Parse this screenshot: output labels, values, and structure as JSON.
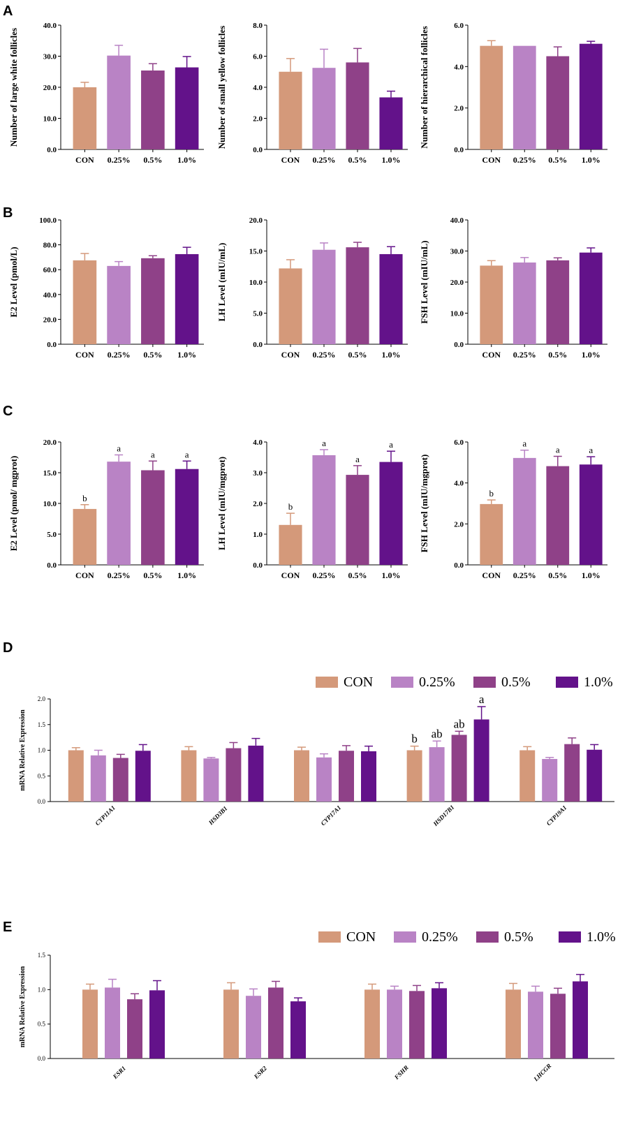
{
  "palette": {
    "CON": "#d4997a",
    "0.25%": "#b983c5",
    "0.5%": "#8f4188",
    "1.0%": "#63128a"
  },
  "groups": [
    "CON",
    "0.25%",
    "0.5%",
    "1.0%"
  ],
  "panels": {
    "A": "A",
    "B": "B",
    "C": "C",
    "D": "D",
    "E": "E"
  },
  "chart_data": [
    {
      "id": "A1",
      "type": "bar",
      "panel": "A",
      "title": "",
      "ylabel": "Number of large white follicles",
      "categories": [
        "CON",
        "0.25%",
        "0.5%",
        "1.0%"
      ],
      "values": [
        20.0,
        30.2,
        25.4,
        26.4
      ],
      "errors": [
        1.6,
        3.3,
        2.2,
        3.5
      ],
      "ylim": [
        0,
        40
      ],
      "yticks": [
        "0.0",
        "10.0",
        "20.0",
        "30.0",
        "40.0"
      ],
      "sig": []
    },
    {
      "id": "A2",
      "type": "bar",
      "panel": "A",
      "title": "",
      "ylabel": "Number of small yellow follicles",
      "categories": [
        "CON",
        "0.25%",
        "0.5%",
        "1.0%"
      ],
      "values": [
        5.0,
        5.25,
        5.6,
        3.35
      ],
      "errors": [
        0.85,
        1.2,
        0.9,
        0.4
      ],
      "ylim": [
        0,
        8
      ],
      "yticks": [
        "0.0",
        "2.0",
        "4.0",
        "6.0",
        "8.0"
      ],
      "sig": []
    },
    {
      "id": "A3",
      "type": "bar",
      "panel": "A",
      "title": "",
      "ylabel": "Number of hierarchical follicles",
      "categories": [
        "CON",
        "0.25%",
        "0.5%",
        "1.0%"
      ],
      "values": [
        5.0,
        5.0,
        4.5,
        5.1
      ],
      "errors": [
        0.25,
        0.0,
        0.45,
        0.12
      ],
      "ylim": [
        0,
        6
      ],
      "yticks": [
        "0.0",
        "2.0",
        "4.0",
        "6.0"
      ],
      "sig": []
    },
    {
      "id": "B1",
      "type": "bar",
      "panel": "B",
      "title": "",
      "ylabel": "E2 Level (pmol/L)",
      "categories": [
        "CON",
        "0.25%",
        "0.5%",
        "1.0%"
      ],
      "values": [
        67.5,
        63.0,
        69.2,
        72.5
      ],
      "errors": [
        5.5,
        3.5,
        2.0,
        5.5
      ],
      "ylim": [
        0,
        100
      ],
      "yticks": [
        "0.0",
        "20.0",
        "40.0",
        "60.0",
        "80.0",
        "100.0"
      ],
      "sig": []
    },
    {
      "id": "B2",
      "type": "bar",
      "panel": "B",
      "title": "",
      "ylabel": "LH Level (mIU/mL)",
      "categories": [
        "CON",
        "0.25%",
        "0.5%",
        "1.0%"
      ],
      "values": [
        12.2,
        15.2,
        15.6,
        14.5
      ],
      "errors": [
        1.4,
        1.1,
        0.8,
        1.2
      ],
      "ylim": [
        0,
        20
      ],
      "yticks": [
        "0.0",
        "5.0",
        "10.0",
        "15.0",
        "20.0"
      ],
      "sig": []
    },
    {
      "id": "B3",
      "type": "bar",
      "panel": "B",
      "title": "",
      "ylabel": "FSH Level (mIU/mL)",
      "categories": [
        "CON",
        "0.25%",
        "0.5%",
        "1.0%"
      ],
      "values": [
        25.3,
        26.3,
        27.0,
        29.5
      ],
      "errors": [
        1.6,
        1.6,
        0.8,
        1.5
      ],
      "ylim": [
        0,
        40
      ],
      "yticks": [
        "0.0",
        "10.0",
        "20.0",
        "30.0",
        "40.0"
      ],
      "sig": []
    },
    {
      "id": "C1",
      "type": "bar",
      "panel": "C",
      "title": "",
      "ylabel": "E2 Level (pmol/ mgprot)",
      "categories": [
        "CON",
        "0.25%",
        "0.5%",
        "1.0%"
      ],
      "values": [
        9.1,
        16.8,
        15.4,
        15.6
      ],
      "errors": [
        0.7,
        1.1,
        1.5,
        1.3
      ],
      "ylim": [
        0,
        20
      ],
      "yticks": [
        "0.0",
        "5.0",
        "10.0",
        "15.0",
        "20.0"
      ],
      "sig": [
        "b",
        "a",
        "a",
        "a"
      ]
    },
    {
      "id": "C2",
      "type": "bar",
      "panel": "C",
      "title": "",
      "ylabel": "LH Level (mIU/mgprot)",
      "categories": [
        "CON",
        "0.25%",
        "0.5%",
        "1.0%"
      ],
      "values": [
        1.3,
        3.57,
        2.93,
        3.35
      ],
      "errors": [
        0.38,
        0.18,
        0.3,
        0.35
      ],
      "ylim": [
        0,
        4
      ],
      "yticks": [
        "0.0",
        "1.0",
        "2.0",
        "3.0",
        "4.0"
      ],
      "sig": [
        "b",
        "a",
        "a",
        "a"
      ]
    },
    {
      "id": "C3",
      "type": "bar",
      "panel": "C",
      "title": "",
      "ylabel": "FSH Level (mIU/mgprot)",
      "categories": [
        "CON",
        "0.25%",
        "0.5%",
        "1.0%"
      ],
      "values": [
        2.97,
        5.22,
        4.82,
        4.9
      ],
      "errors": [
        0.2,
        0.38,
        0.48,
        0.38
      ],
      "ylim": [
        0,
        6
      ],
      "yticks": [
        "0.0",
        "2.0",
        "4.0",
        "6.0"
      ],
      "sig": [
        "b",
        "a",
        "a",
        "a"
      ]
    },
    {
      "id": "D",
      "type": "bar",
      "panel": "D",
      "title": "",
      "ylabel": "mRNA Relative Expression",
      "categories": [
        "CYP11A1",
        "HSD3B1",
        "CYP17A1",
        "HSD17B1",
        "CYP19A1"
      ],
      "series": [
        {
          "name": "CON",
          "values": [
            1.0,
            1.0,
            1.0,
            1.0,
            1.0
          ],
          "errors": [
            0.05,
            0.07,
            0.06,
            0.08,
            0.07
          ]
        },
        {
          "name": "0.25%",
          "values": [
            0.9,
            0.84,
            0.86,
            1.06,
            0.83
          ],
          "errors": [
            0.1,
            0.02,
            0.07,
            0.12,
            0.03
          ]
        },
        {
          "name": "0.5%",
          "values": [
            0.85,
            1.04,
            0.99,
            1.3,
            1.12
          ],
          "errors": [
            0.07,
            0.11,
            0.1,
            0.07,
            0.12
          ]
        },
        {
          "name": "1.0%",
          "values": [
            0.99,
            1.09,
            0.98,
            1.6,
            1.01
          ],
          "errors": [
            0.12,
            0.14,
            0.1,
            0.25,
            0.1
          ]
        }
      ],
      "ylim": [
        0,
        2
      ],
      "yticks": [
        "0.0",
        "0.5",
        "1.0",
        "1.5",
        "2.0"
      ],
      "sig": [
        {
          "category": "HSD17B1",
          "labels": [
            "b",
            "ab",
            "ab",
            "a"
          ]
        }
      ]
    },
    {
      "id": "E",
      "type": "bar",
      "panel": "E",
      "title": "",
      "ylabel": "mRNA Relative Expression",
      "categories": [
        "ESR1",
        "ESR2",
        "FSHR",
        "LHCGR"
      ],
      "series": [
        {
          "name": "CON",
          "values": [
            1.0,
            1.0,
            1.0,
            1.0
          ],
          "errors": [
            0.08,
            0.1,
            0.08,
            0.09
          ]
        },
        {
          "name": "0.25%",
          "values": [
            1.03,
            0.91,
            1.0,
            0.97
          ],
          "errors": [
            0.12,
            0.1,
            0.05,
            0.08
          ]
        },
        {
          "name": "0.5%",
          "values": [
            0.86,
            1.03,
            0.98,
            0.94
          ],
          "errors": [
            0.08,
            0.09,
            0.08,
            0.08
          ]
        },
        {
          "name": "1.0%",
          "values": [
            0.99,
            0.83,
            1.02,
            1.12
          ],
          "errors": [
            0.14,
            0.05,
            0.08,
            0.1
          ]
        }
      ],
      "ylim": [
        0,
        1.5
      ],
      "yticks": [
        "0.0",
        "0.5",
        "1.0",
        "1.5"
      ],
      "sig": []
    }
  ]
}
